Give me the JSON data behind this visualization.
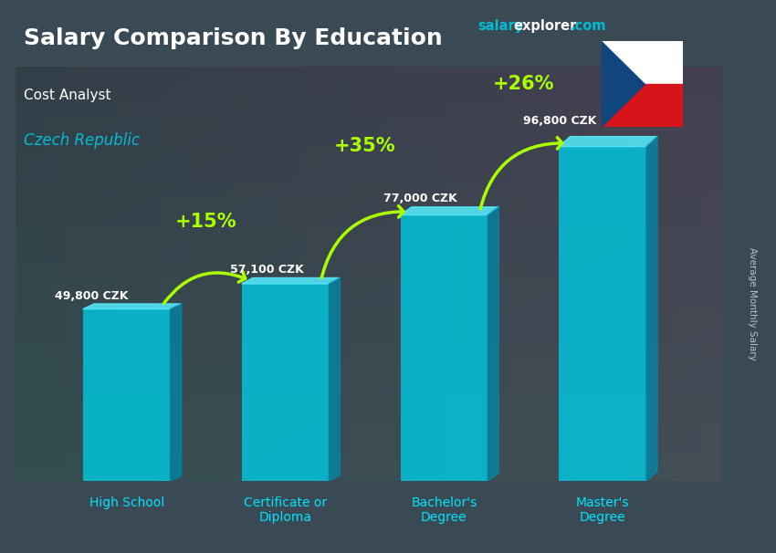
{
  "title": "Salary Comparison By Education",
  "subtitle": "Cost Analyst",
  "country": "Czech Republic",
  "ylabel": "Average Monthly Salary",
  "categories": [
    "High School",
    "Certificate or\nDiploma",
    "Bachelor's\nDegree",
    "Master's\nDegree"
  ],
  "values": [
    49800,
    57100,
    77000,
    96800
  ],
  "value_labels": [
    "49,800 CZK",
    "57,100 CZK",
    "77,000 CZK",
    "96,800 CZK"
  ],
  "pct_labels": [
    "+15%",
    "+35%",
    "+26%"
  ],
  "bar_color": "#00c8e0",
  "bar_alpha": 0.82,
  "bar_width": 0.55,
  "bg_color": "#3a4a55",
  "title_color": "#ffffff",
  "subtitle_color": "#ffffff",
  "country_color": "#00bcd4",
  "value_label_color": "#ffffff",
  "pct_color": "#aaff00",
  "ylabel_color": "#cccccc",
  "cat_label_color": "#00e5ff",
  "brand_salary_color": "#00bcd4",
  "brand_explorer_color": "#ffffff",
  "brand_com_color": "#00bcd4",
  "ylim_max": 120000,
  "fig_width": 8.5,
  "fig_height": 6.06,
  "dpi": 100
}
